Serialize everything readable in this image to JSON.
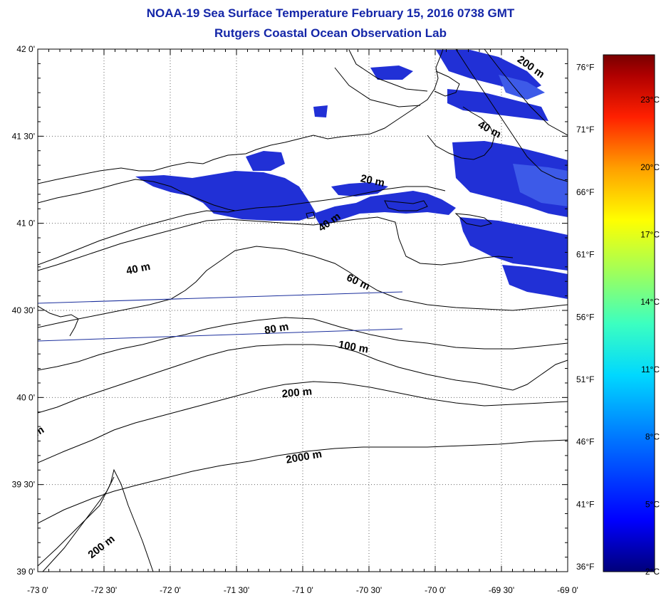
{
  "header": {
    "title": "NOAA-19 Sea Surface Temperature February 15, 2016 0738 GMT",
    "subtitle": "Rutgers Coastal Ocean Observation Lab"
  },
  "map": {
    "lat_labels": [
      "42 0'",
      "41 30'",
      "41 0'",
      "40 30'",
      "40 0'",
      "39 30'",
      "39 0'"
    ],
    "lat_values": [
      42.0,
      41.5,
      41.0,
      40.5,
      40.0,
      39.5,
      39.0
    ],
    "lon_labels": [
      "-73 0'",
      "-72 30'",
      "-72 0'",
      "-71 30'",
      "-71 0'",
      "-70 30'",
      "-70 0'",
      "-69 30'",
      "-69 0'"
    ],
    "lon_values": [
      -73.0,
      -72.5,
      -72.0,
      -71.5,
      -71.0,
      -70.5,
      -70.0,
      -69.5,
      -69.0
    ],
    "lat_range": [
      39.0,
      42.0
    ],
    "lon_range": [
      -73.0,
      -69.0
    ],
    "grid": "dotted",
    "contour_labels": [
      "200 m",
      "40 m",
      "20 m",
      "40 m",
      "40 m",
      "60 m",
      "80 m",
      "100 m",
      "200 m",
      "2000 m",
      "200 m",
      "m"
    ]
  },
  "colorbar": {
    "fahrenheit_labels": [
      "76°F",
      "71°F",
      "66°F",
      "61°F",
      "56°F",
      "51°F",
      "46°F",
      "41°F",
      "36°F"
    ],
    "fahrenheit_values": [
      76,
      71,
      66,
      61,
      56,
      51,
      46,
      41,
      36
    ],
    "celsius_labels": [
      "23°C",
      "20°C",
      "17°C",
      "14°C",
      "11°C",
      "8°C",
      "5°C",
      "2°C"
    ],
    "celsius_values": [
      23,
      20,
      17,
      14,
      11,
      8,
      5,
      2
    ],
    "range_celsius": [
      2,
      25
    ],
    "colors": [
      "#00007a",
      "#0000ff",
      "#0070ff",
      "#00d8ff",
      "#3cffc0",
      "#a0ff5a",
      "#ffff00",
      "#ffa000",
      "#ff2000",
      "#b00000",
      "#780000"
    ]
  },
  "colors": {
    "title": "#1426a8",
    "sst_patch": "#2130d6",
    "sst_patch_light": "#3d5ae8"
  }
}
